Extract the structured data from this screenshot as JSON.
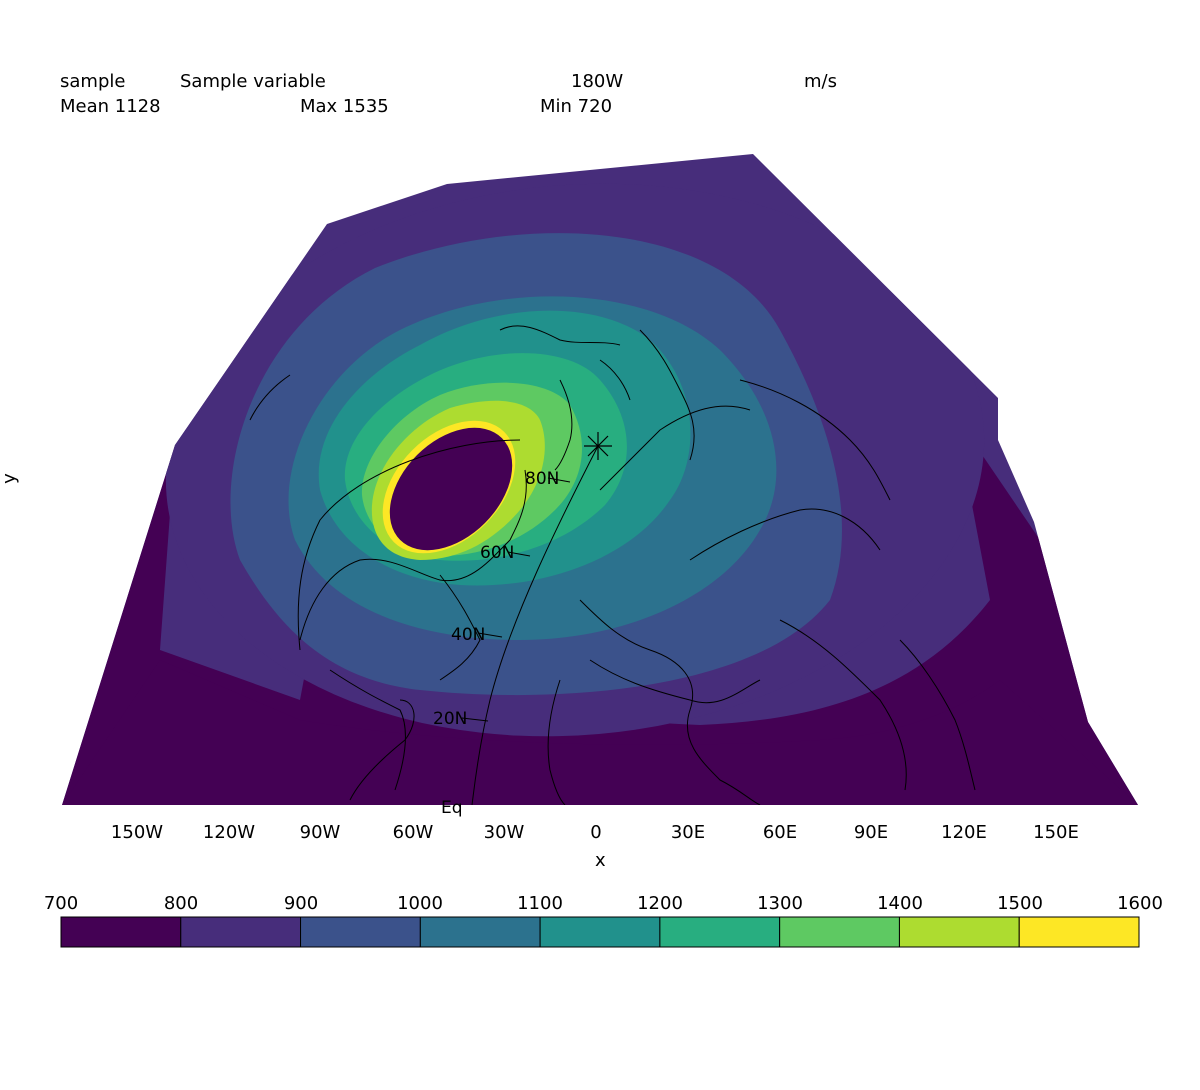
{
  "header": {
    "name": "sample",
    "long_name": "Sample variable",
    "center_lon": "180W",
    "units": "m/s",
    "mean": "Mean 1128",
    "max": "Max 1535",
    "min": "Min 720"
  },
  "axes": {
    "xlabel": "x",
    "ylabel": "y",
    "xticks": [
      "150W",
      "120W",
      "90W",
      "60W",
      "30W",
      "0",
      "30E",
      "60E",
      "90E",
      "120E",
      "150E"
    ],
    "lat_labels": [
      "80N",
      "60N",
      "40N",
      "20N",
      "Eq"
    ]
  },
  "colorbar": {
    "boundaries": [
      "700",
      "800",
      "900",
      "1000",
      "1100",
      "1200",
      "1300",
      "1400",
      "1500",
      "1600"
    ],
    "colors": [
      "#440154",
      "#472d7b",
      "#3b528b",
      "#2c728e",
      "#21918c",
      "#28ae80",
      "#5ec962",
      "#addc30",
      "#fde725"
    ]
  },
  "chart_data": {
    "type": "heatmap",
    "projection": "tilted perspective (polar view)",
    "title": "Sample variable",
    "units": "m/s",
    "stats": {
      "mean": 1128,
      "max": 1535,
      "min": 720
    },
    "levels": [
      700,
      800,
      900,
      1000,
      1100,
      1200,
      1300,
      1400,
      1500,
      1600
    ],
    "xlabel": "x",
    "ylabel": "y",
    "x_ticks": [
      "150W",
      "120W",
      "90W",
      "60W",
      "30W",
      "0",
      "30E",
      "60E",
      "90E",
      "120E",
      "150E"
    ],
    "lat_labels": [
      "80N",
      "60N",
      "40N",
      "20N",
      "Eq"
    ]
  }
}
